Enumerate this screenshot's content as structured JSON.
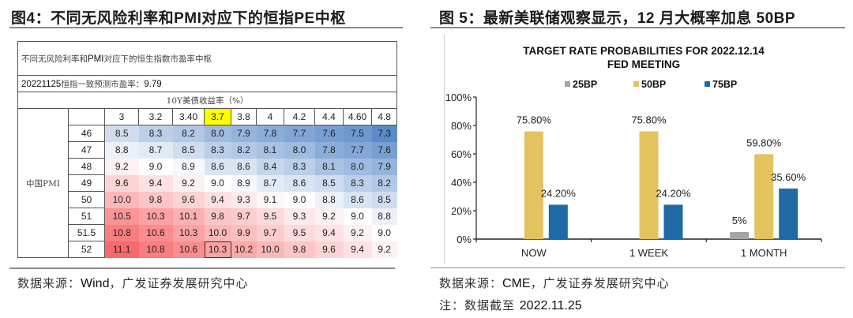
{
  "left_figure": {
    "title": "图4：不同无风险利率和PMI对应下的恒指PE中枢",
    "table": {
      "caption_cn": "不同无风险利率和",
      "caption_latin": "PMI",
      "caption_rest": "对应下的恒生指数市盈率中枢",
      "forecast_date": "20221125",
      "forecast_label": "恒指一致预测市盈率：",
      "forecast_value": "9.79",
      "x_axis_label": "10Y美债收益率（%）",
      "y_axis_label": "中国PMI",
      "columns": [
        "3",
        "3.2",
        "3.40",
        "3.7",
        "3.8",
        "4",
        "4.2",
        "4.4",
        "4.60",
        "4.8"
      ],
      "highlight_column": "3.7",
      "rows": [
        {
          "pmi": "46",
          "values": [
            "8.5",
            "8.3",
            "8.2",
            "8.0",
            "7.9",
            "7.8",
            "7.7",
            "7.6",
            "7.5",
            "7.3"
          ]
        },
        {
          "pmi": "47",
          "values": [
            "8.8",
            "8.7",
            "8.5",
            "8.3",
            "8.2",
            "8.1",
            "8.0",
            "7.8",
            "7.7",
            "7.6"
          ]
        },
        {
          "pmi": "48",
          "values": [
            "9.2",
            "9.0",
            "8.9",
            "8.6",
            "8.6",
            "8.4",
            "8.3",
            "8.1",
            "8.0",
            "7.9"
          ]
        },
        {
          "pmi": "49",
          "values": [
            "9.6",
            "9.4",
            "9.2",
            "9.0",
            "8.9",
            "8.7",
            "8.6",
            "8.5",
            "8.3",
            "8.2"
          ]
        },
        {
          "pmi": "50",
          "values": [
            "10.0",
            "9.8",
            "9.6",
            "9.4",
            "9.3",
            "9.1",
            "9.0",
            "8.8",
            "8.6",
            "8.5"
          ]
        },
        {
          "pmi": "51",
          "values": [
            "10.5",
            "10.3",
            "10.1",
            "9.8",
            "9.7",
            "9.5",
            "9.3",
            "9.2",
            "9.0",
            "8.8"
          ]
        },
        {
          "pmi": "51.5",
          "values": [
            "10.8",
            "10.6",
            "10.3",
            "10.0",
            "9.9",
            "9.7",
            "9.5",
            "9.4",
            "9.2",
            "9.0"
          ]
        },
        {
          "pmi": "52",
          "values": [
            "11.1",
            "10.8",
            "10.6",
            "10.3",
            "10.2",
            "10.0",
            "9.8",
            "9.6",
            "9.4",
            "9.2"
          ]
        }
      ],
      "boxed_cell": {
        "pmi": "52",
        "column": "3.7"
      },
      "colors": {
        "low": "#5b8bc9",
        "mid": "#ffffff",
        "high": "#f8696b",
        "highlight": "#ffff00"
      }
    },
    "source_prefix": "数据来源：",
    "source_latin": "Wind",
    "source_suffix": "，广发证券发展研究中心"
  },
  "right_figure": {
    "title": "图 5：最新美联储观察显示，12 月大概率加息 50BP",
    "source_prefix": "数据来源：",
    "source_latin": "CME",
    "source_suffix": "，广发证券发展研究中心",
    "note_prefix": "注：数据截至 ",
    "note_date": "2022.11.25"
  },
  "chart_data": {
    "type": "bar",
    "title": "TARGET RATE PROBABILITIES  FOR 2022.12.14",
    "subtitle": "FED MEETING",
    "xlabel": "",
    "ylabel": "",
    "categories": [
      "NOW",
      "1 WEEK",
      "1 MONTH"
    ],
    "series": [
      {
        "name": "25BP",
        "color": "#a5a5a5",
        "values": [
          0,
          0,
          5
        ],
        "labels": [
          "",
          "",
          "5%"
        ]
      },
      {
        "name": "50BP",
        "color": "#e2c35f",
        "values": [
          75.8,
          75.8,
          59.8
        ],
        "labels": [
          "75.80%",
          "75.80%",
          "59.80%"
        ]
      },
      {
        "name": "75BP",
        "color": "#1f6aa5",
        "values": [
          24.2,
          24.2,
          35.6
        ],
        "labels": [
          "24.20%",
          "24.20%",
          "35.60%"
        ]
      }
    ],
    "ylim": [
      0,
      100
    ],
    "yticks": [
      0,
      20,
      40,
      60,
      80,
      100
    ],
    "ytick_labels": [
      "0%",
      "20%",
      "40%",
      "60%",
      "80%",
      "100%"
    ],
    "legend_position": "top-center",
    "grid": false
  }
}
